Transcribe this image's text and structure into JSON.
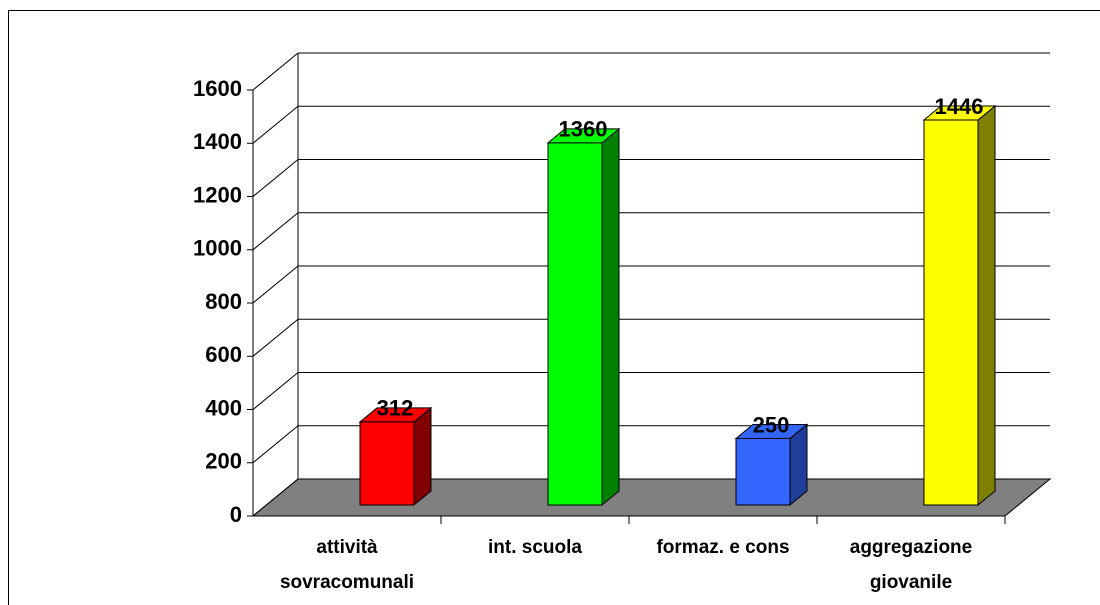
{
  "chart_data": {
    "type": "bar3d",
    "categories": [
      [
        "attività",
        "sovracomunali"
      ],
      [
        "int. scuola"
      ],
      [
        "formaz. e cons"
      ],
      [
        "aggregazione",
        "giovanile"
      ]
    ],
    "values": [
      312,
      1360,
      250,
      1446
    ],
    "colors": [
      "#ff0000",
      "#00ff00",
      "#3366ff",
      "#ffff00"
    ],
    "side_colors": [
      "#800000",
      "#008000",
      "#1f3d99",
      "#808000"
    ],
    "ylim": [
      0,
      1600
    ],
    "yticks": [
      0,
      200,
      400,
      600,
      800,
      1000,
      1200,
      1400,
      1600
    ],
    "grid": true
  }
}
